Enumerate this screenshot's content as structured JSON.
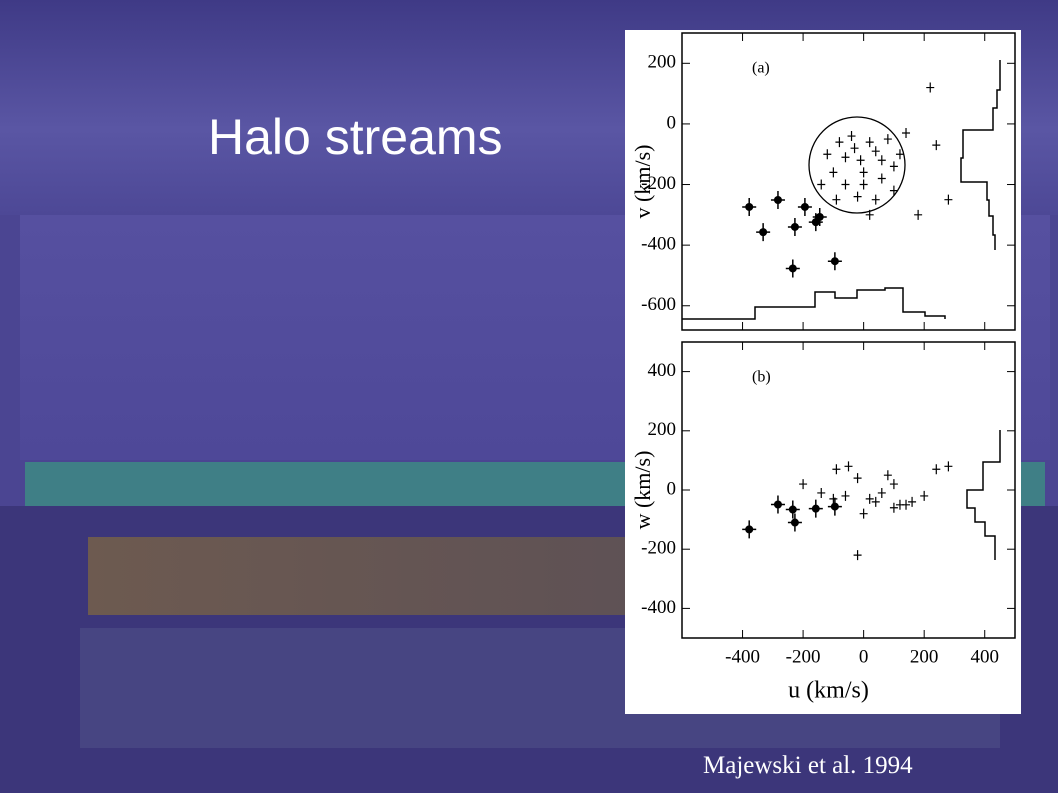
{
  "slide": {
    "title": "Halo streams",
    "credit": "Majewski et al. 1994"
  },
  "chart_data": [
    {
      "type": "scatter",
      "panel_label": "(a)",
      "y_label": "v (km/s)",
      "xlim": [
        -600,
        500
      ],
      "ylim": [
        -680,
        300
      ],
      "xticks": [
        -400,
        -200,
        0,
        200,
        400
      ],
      "yticks": [
        -600,
        -400,
        -200,
        0,
        200
      ],
      "series": [
        {
          "marker": "filled",
          "color": "#000000",
          "x": [
            -378,
            -332,
            -283,
            -227,
            -194,
            -158,
            -145,
            -234,
            -95
          ],
          "values": [
            -274,
            -357,
            -251,
            -340,
            -274,
            -324,
            -307,
            -477,
            -453
          ]
        },
        {
          "marker": "cross",
          "color": "#000000",
          "x": [
            -60,
            -10,
            40,
            -100,
            60,
            0,
            -80,
            100,
            -40,
            20,
            80,
            -120,
            120,
            -20,
            40,
            -90,
            140,
            -60,
            60,
            -140,
            100,
            0,
            -30,
            20,
            240,
            180,
            220,
            280
          ],
          "values": [
            -110,
            -120,
            -90,
            -160,
            -180,
            -200,
            -60,
            -140,
            -40,
            -60,
            -50,
            -100,
            -100,
            -240,
            -250,
            -250,
            -30,
            -200,
            -120,
            -200,
            -220,
            -160,
            -80,
            -300,
            -70,
            -300,
            120,
            -250
          ]
        }
      ]
    },
    {
      "type": "scatter",
      "panel_label": "(b)",
      "x_label": "u (km/s)",
      "y_label": "w (km/s)",
      "xlim": [
        -600,
        500
      ],
      "ylim": [
        -500,
        500
      ],
      "xticks": [
        -400,
        -200,
        0,
        200,
        400
      ],
      "yticks": [
        -400,
        -200,
        0,
        200,
        400
      ],
      "series": [
        {
          "marker": "filled",
          "color": "#000000",
          "x": [
            -378,
            -283,
            -234,
            -227,
            -158,
            -95
          ],
          "values": [
            -133,
            -49,
            -66,
            -110,
            -63,
            -56
          ]
        },
        {
          "marker": "cross",
          "color": "#000000",
          "x": [
            -20,
            -60,
            -100,
            -90,
            -50,
            20,
            40,
            60,
            80,
            100,
            160,
            140,
            200,
            240,
            280,
            100,
            -20,
            0,
            120,
            -200,
            -140
          ],
          "values": [
            40,
            -20,
            -30,
            70,
            80,
            -30,
            -40,
            -10,
            50,
            20,
            -40,
            -50,
            -20,
            70,
            80,
            -60,
            -220,
            -80,
            -50,
            20,
            -10
          ]
        }
      ]
    }
  ]
}
